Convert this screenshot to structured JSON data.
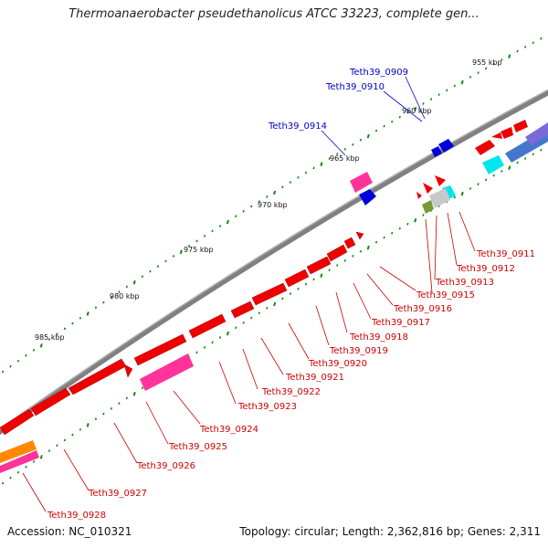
{
  "title": "Thermoanaerobacter pseudethanolicus ATCC 33223, complete gen...",
  "footer": {
    "accession": "Accession: NC_010321",
    "topology": "Topology: circular; Length: 2,362,816 bp; Genes: 2,311"
  },
  "colors": {
    "backbone": "#808080",
    "forward_gene": "#ee0000",
    "highlight_gene": "#ff3399",
    "ticks": "#118811",
    "label_red": "#cc0000",
    "label_blue": "#0000cc"
  },
  "kbp_labels": [
    "955 kbp",
    "960 kbp",
    "965 kbp",
    "970 kbp",
    "975 kbp",
    "980 kbp",
    "985 kbp"
  ],
  "gene_labels_reverse": [
    "Teth39_0911",
    "Teth39_0912",
    "Teth39_0913",
    "Teth39_0915",
    "Teth39_0916",
    "Teth39_0917",
    "Teth39_0918",
    "Teth39_0919",
    "Teth39_0920",
    "Teth39_0921",
    "Teth39_0922",
    "Teth39_0923",
    "Teth39_0924",
    "Teth39_0925",
    "Teth39_0926",
    "Teth39_0927",
    "Teth39_0928"
  ],
  "gene_labels_forward": [
    "Teth39_0909",
    "Teth39_0910",
    "Teth39_0914"
  ]
}
